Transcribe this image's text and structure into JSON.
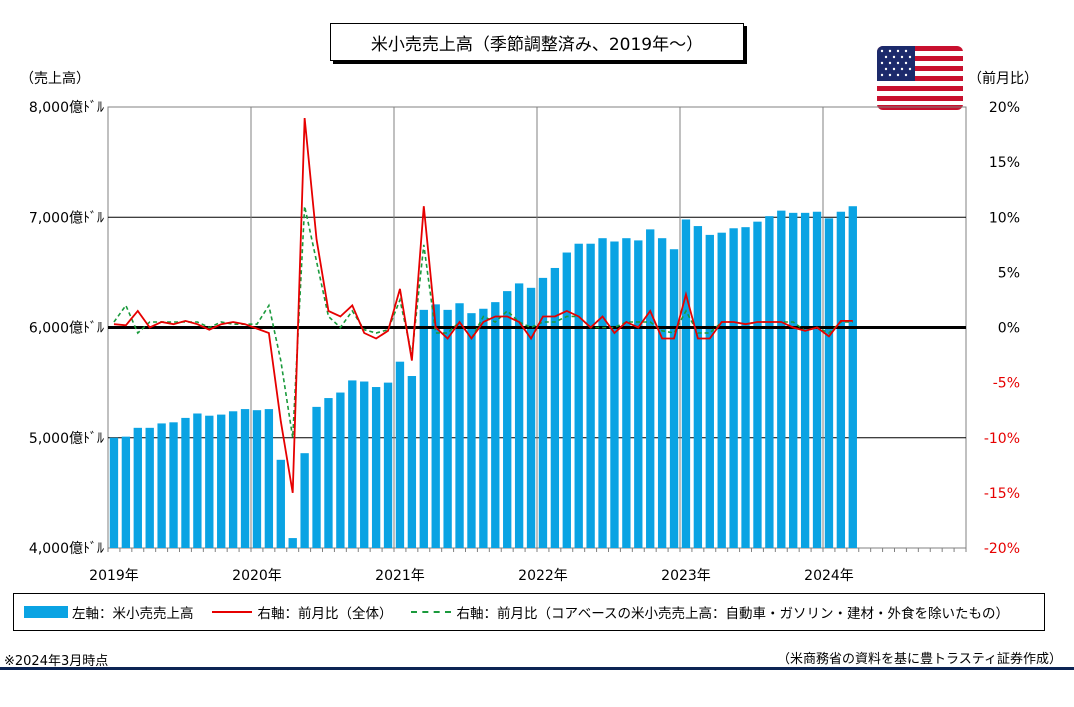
{
  "title": "米小売売上高（季節調整済み、2019年～）",
  "left_axis_title": "（売上高）",
  "right_axis_title": "（前月比）",
  "left_ticks": [
    "4,000億ﾄﾞﾙ",
    "5,000億ﾄﾞﾙ",
    "6,000億ﾄﾞﾙ",
    "7,000億ﾄﾞﾙ",
    "8,000億ﾄﾞﾙ"
  ],
  "right_ticks": [
    "-20%",
    "-15%",
    "-10%",
    "-5%",
    "0%",
    "5%",
    "10%",
    "15%",
    "20%"
  ],
  "legend": {
    "bar": "左軸：米小売売上高",
    "line": "右軸：前月比（全体）",
    "dash": "右軸：前月比（コアベースの米小売売上高：自動車・ガソリン・建材・外食を除いたもの）"
  },
  "note_left": "※2024年3月時点",
  "note_right": "（米商務省の資料を基に豊トラスティ証券作成）",
  "colors": {
    "bar": "#0aa3e3",
    "total": "#e60000",
    "core": "#1a9a3c",
    "negative_tick": "#e60000"
  },
  "flag": "us-flag",
  "chart_data": {
    "type": "bar",
    "x_labels": [
      "2019年",
      "2020年",
      "2021年",
      "2022年",
      "2023年",
      "2024年"
    ],
    "x_start": "2019-01",
    "x_end": "2024-12",
    "left_ylim": [
      4000,
      8000
    ],
    "right_ylim": [
      -20,
      20
    ],
    "left_unit": "億ドル",
    "right_unit": "%",
    "grid": "horizontal-and-vertical",
    "series": [
      {
        "name": "左軸：米小売売上高",
        "type": "bar",
        "axis": "left",
        "values": [
          5000,
          5010,
          5090,
          5090,
          5130,
          5140,
          5180,
          5220,
          5200,
          5210,
          5240,
          5260,
          5250,
          5260,
          4800,
          4090,
          4860,
          5280,
          5360,
          5410,
          5520,
          5510,
          5460,
          5500,
          5690,
          5560,
          6160,
          6210,
          6160,
          6220,
          6130,
          6170,
          6230,
          6330,
          6400,
          6360,
          6450,
          6540,
          6680,
          6760,
          6760,
          6810,
          6780,
          6810,
          6790,
          6890,
          6810,
          6710,
          6980,
          6920,
          6840,
          6860,
          6900,
          6910,
          6960,
          7010,
          7060,
          7040,
          7040,
          7050,
          6990,
          7050,
          7100
        ]
      },
      {
        "name": "右軸：前月比（全体）",
        "type": "line",
        "axis": "right",
        "values": [
          0.3,
          0.2,
          1.5,
          0.0,
          0.5,
          0.3,
          0.6,
          0.3,
          -0.2,
          0.3,
          0.5,
          0.3,
          -0.1,
          -0.5,
          -8.5,
          -15.0,
          19.0,
          8.0,
          1.5,
          1.0,
          2.0,
          -0.5,
          -1.0,
          -0.3,
          3.5,
          -3.0,
          11.0,
          0.0,
          -1.0,
          0.5,
          -1.0,
          0.5,
          1.0,
          1.0,
          0.5,
          -1.0,
          1.0,
          1.0,
          1.5,
          1.0,
          0.0,
          1.0,
          -0.5,
          0.5,
          0.0,
          1.5,
          -1.0,
          -1.0,
          3.0,
          -1.0,
          -1.0,
          0.5,
          0.5,
          0.3,
          0.5,
          0.5,
          0.5,
          0.0,
          -0.3,
          0.0,
          -0.8,
          0.6,
          0.6
        ]
      },
      {
        "name": "右軸：前月比（コアベースの米小売売上高：自動車・ガソリン・建材・外食を除いたもの）",
        "type": "line",
        "axis": "right",
        "values": [
          0.5,
          2.0,
          -0.5,
          0.5,
          0.5,
          0.5,
          0.5,
          0.5,
          0.0,
          0.5,
          0.3,
          0.3,
          0.3,
          2.0,
          -3.0,
          -10.0,
          11.0,
          6.0,
          1.0,
          0.0,
          1.5,
          -0.2,
          -0.5,
          -0.2,
          2.5,
          -2.5,
          7.5,
          -0.5,
          -0.5,
          0.5,
          -1.0,
          1.0,
          0.5,
          1.5,
          0.5,
          0.0,
          0.5,
          0.5,
          1.0,
          1.0,
          0.0,
          0.0,
          0.0,
          0.5,
          0.5,
          0.5,
          -0.3,
          -0.5,
          1.5,
          -0.5,
          -0.5,
          0.5,
          0.5,
          0.3,
          0.5,
          0.5,
          0.5,
          0.5,
          -0.3,
          0.0,
          -0.5,
          0.5,
          0.5
        ]
      }
    ]
  }
}
